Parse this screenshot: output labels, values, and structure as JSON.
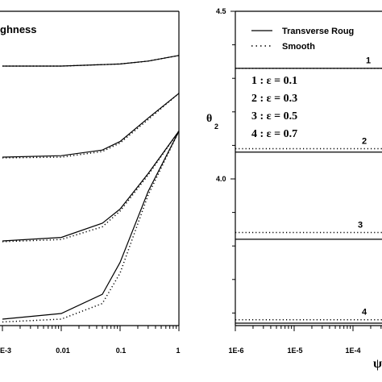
{
  "chart_data": [
    {
      "type": "line",
      "panel": "left",
      "legend_fragment": "ghness",
      "x_scale": "log",
      "xlim": [
        0.001,
        1
      ],
      "x_tick_labels": [
        "E-3",
        "0.01",
        "0.1",
        "1"
      ],
      "curves": [
        {
          "id": "1",
          "x": [
            0.001,
            0.01,
            0.1,
            0.3,
            1
          ],
          "rough": [
            0.0,
            0.0,
            0.03,
            0.07,
            0.15
          ],
          "smooth": [
            0.0,
            0.0,
            0.03,
            0.07,
            0.15
          ]
        },
        {
          "id": "2",
          "x": [
            0.001,
            0.01,
            0.05,
            0.1,
            0.3,
            1
          ],
          "rough": [
            0.0,
            0.02,
            0.1,
            0.22,
            0.55,
            0.9
          ],
          "smooth": [
            -0.01,
            0.0,
            0.08,
            0.2,
            0.53,
            0.9
          ]
        },
        {
          "id": "3",
          "x": [
            0.001,
            0.01,
            0.05,
            0.1,
            0.3,
            1
          ],
          "rough": [
            0.0,
            0.05,
            0.25,
            0.45,
            0.95,
            1.55
          ],
          "smooth": [
            -0.01,
            0.02,
            0.2,
            0.42,
            0.93,
            1.55
          ]
        },
        {
          "id": "4",
          "x": [
            0.001,
            0.01,
            0.05,
            0.1,
            0.3,
            1
          ],
          "rough": [
            0.0,
            0.08,
            0.35,
            0.8,
            1.8,
            2.65
          ],
          "smooth": [
            -0.04,
            0.0,
            0.22,
            0.65,
            1.75,
            2.65
          ]
        }
      ]
    },
    {
      "type": "line",
      "panel": "right",
      "ylabel": "θ",
      "ylabel_sub": "2",
      "xlabel": "ψ",
      "x_scale": "log",
      "xlim": [
        1e-06,
        0.001
      ],
      "x_tick_labels": [
        "1E-6",
        "1E-5",
        "1E-4"
      ],
      "ylim": [
        3.55,
        4.5
      ],
      "y_tick_labels": [
        "4.5",
        "4.0"
      ],
      "y_ticks": [
        4.5,
        4.0
      ],
      "legend": {
        "position": "top",
        "entries": [
          {
            "label": "Transverse Roug",
            "style": "solid"
          },
          {
            "label": "Smooth",
            "style": "dotted"
          }
        ]
      },
      "annotations": [
        "1 : ε = 0.1",
        "2 : ε = 0.3",
        "3 : ε = 0.5",
        "4 : ε = 0.7"
      ],
      "series": [
        {
          "id": "1",
          "rough": 4.33,
          "smooth": 4.33
        },
        {
          "id": "2",
          "rough": 4.08,
          "smooth": 4.09
        },
        {
          "id": "3",
          "rough": 3.82,
          "smooth": 3.84
        },
        {
          "id": "4",
          "rough": 3.55,
          "smooth": 3.58
        }
      ]
    }
  ]
}
